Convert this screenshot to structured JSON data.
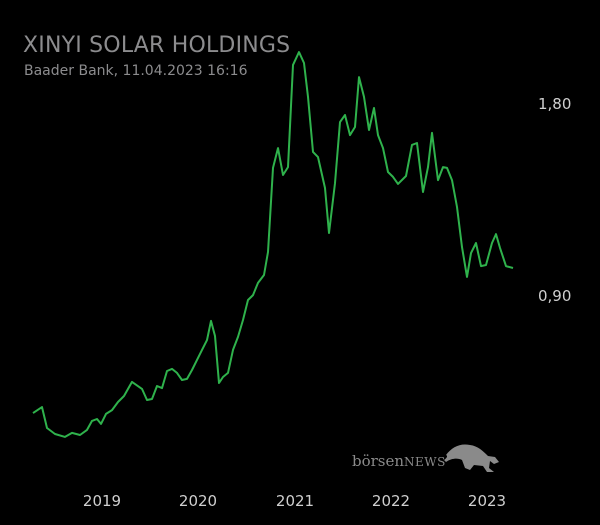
{
  "chart_data": {
    "type": "line",
    "title": "XINYI SOLAR HOLDINGS",
    "subtitle": "Baader Bank, 11.04.2023 16:16",
    "xlabel": "",
    "ylabel": "",
    "x_ticks": [
      "2019",
      "2020",
      "2021",
      "2022",
      "2023"
    ],
    "y_ticks": [
      {
        "value": 1.8,
        "label": "1,80"
      },
      {
        "value": 0.9,
        "label": "0,90"
      }
    ],
    "grid": false,
    "series_color": "#2fb24c",
    "series": [
      {
        "name": "Xinyi Solar Holdings",
        "points": [
          [
            2018.285,
            0.356
          ],
          [
            2018.378,
            0.384
          ],
          [
            2018.43,
            0.286
          ],
          [
            2018.513,
            0.258
          ],
          [
            2018.617,
            0.244
          ],
          [
            2018.689,
            0.263
          ],
          [
            2018.772,
            0.253
          ],
          [
            2018.845,
            0.277
          ],
          [
            2018.896,
            0.319
          ],
          [
            2018.948,
            0.328
          ],
          [
            2018.99,
            0.305
          ],
          [
            2019.041,
            0.352
          ],
          [
            2019.104,
            0.37
          ],
          [
            2019.166,
            0.408
          ],
          [
            2019.228,
            0.436
          ],
          [
            2019.311,
            0.502
          ],
          [
            2019.415,
            0.469
          ],
          [
            2019.466,
            0.417
          ],
          [
            2019.518,
            0.422
          ],
          [
            2019.57,
            0.483
          ],
          [
            2019.622,
            0.473
          ],
          [
            2019.674,
            0.553
          ],
          [
            2019.725,
            0.563
          ],
          [
            2019.777,
            0.544
          ],
          [
            2019.829,
            0.511
          ],
          [
            2019.881,
            0.516
          ],
          [
            2019.933,
            0.558
          ],
          [
            2019.984,
            0.605
          ],
          [
            2020.036,
            0.652
          ],
          [
            2020.088,
            0.698
          ],
          [
            2020.13,
            0.788
          ],
          [
            2020.171,
            0.717
          ],
          [
            2020.212,
            0.497
          ],
          [
            2020.254,
            0.525
          ],
          [
            2020.306,
            0.544
          ],
          [
            2020.358,
            0.652
          ],
          [
            2020.409,
            0.713
          ],
          [
            2020.461,
            0.792
          ],
          [
            2020.513,
            0.886
          ],
          [
            2020.565,
            0.909
          ],
          [
            2020.617,
            0.966
          ],
          [
            2020.679,
            1.003
          ],
          [
            2020.72,
            1.111
          ],
          [
            2020.772,
            1.505
          ],
          [
            2020.824,
            1.598
          ],
          [
            2020.876,
            1.472
          ],
          [
            2020.927,
            1.509
          ],
          [
            2020.979,
            1.988
          ],
          [
            2021.041,
            2.048
          ],
          [
            2021.093,
            1.997
          ],
          [
            2021.135,
            1.838
          ],
          [
            2021.187,
            1.58
          ],
          [
            2021.238,
            1.556
          ],
          [
            2021.311,
            1.411
          ],
          [
            2021.352,
            1.2
          ],
          [
            2021.415,
            1.434
          ],
          [
            2021.466,
            1.72
          ],
          [
            2021.518,
            1.753
          ],
          [
            2021.57,
            1.659
          ],
          [
            2021.622,
            1.697
          ],
          [
            2021.663,
            1.931
          ],
          [
            2021.715,
            1.838
          ],
          [
            2021.767,
            1.683
          ],
          [
            2021.819,
            1.786
          ],
          [
            2021.86,
            1.659
          ],
          [
            2021.912,
            1.598
          ],
          [
            2021.964,
            1.486
          ],
          [
            2022.016,
            1.463
          ],
          [
            2022.067,
            1.43
          ],
          [
            2022.15,
            1.467
          ],
          [
            2022.212,
            1.613
          ],
          [
            2022.264,
            1.622
          ],
          [
            2022.326,
            1.392
          ],
          [
            2022.378,
            1.509
          ],
          [
            2022.42,
            1.669
          ],
          [
            2022.482,
            1.448
          ],
          [
            2022.534,
            1.509
          ],
          [
            2022.575,
            1.505
          ],
          [
            2022.627,
            1.448
          ],
          [
            2022.679,
            1.322
          ],
          [
            2022.731,
            1.134
          ],
          [
            2022.782,
            0.994
          ],
          [
            2022.824,
            1.106
          ],
          [
            2022.876,
            1.153
          ],
          [
            2022.927,
            1.045
          ],
          [
            2022.979,
            1.05
          ],
          [
            2023.041,
            1.153
          ],
          [
            2023.083,
            1.195
          ],
          [
            2023.124,
            1.13
          ],
          [
            2023.187,
            1.045
          ],
          [
            2023.259,
            1.036
          ]
        ]
      }
    ]
  },
  "logo": {
    "text_main": "börsen",
    "text_news": "NEWS"
  }
}
